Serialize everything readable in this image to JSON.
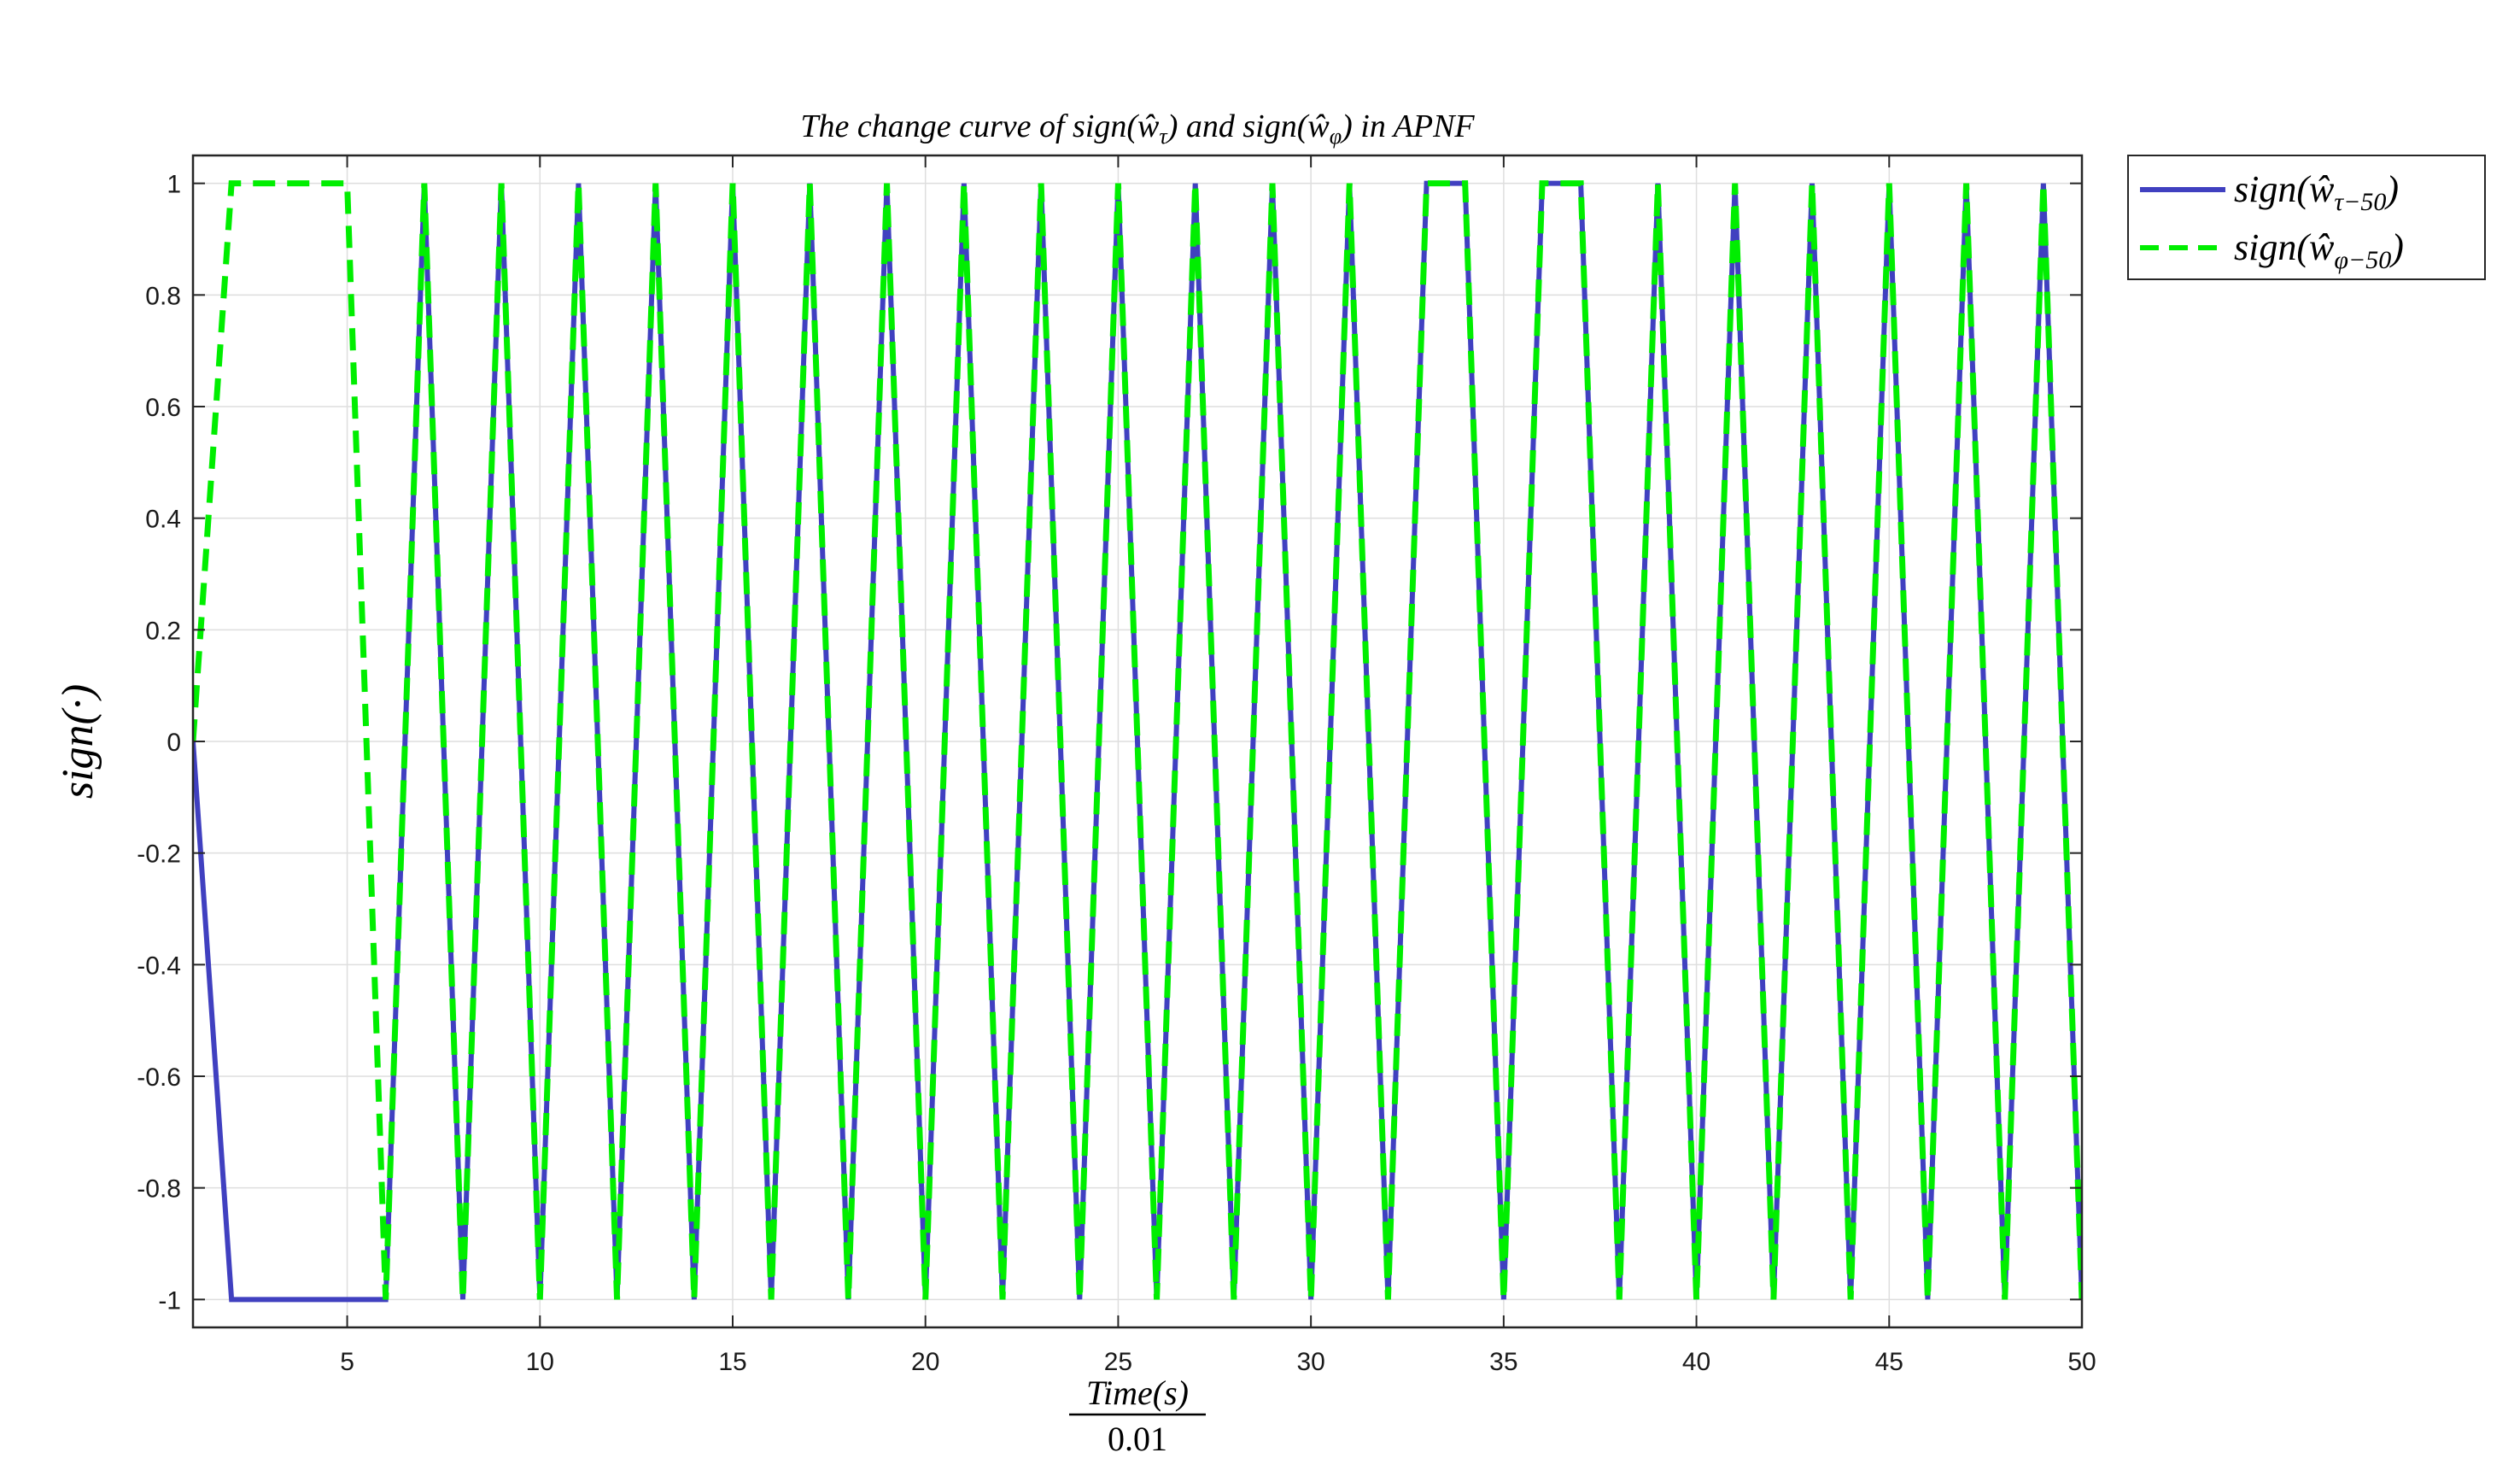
{
  "chart_data": {
    "type": "line",
    "title": "The change curve of sign(ŵ_τ) and sign(ŵ_φ) in APNF",
    "xlabel_numerator": "Time(s)",
    "xlabel_denominator": "0.01",
    "ylabel": "sign(·)",
    "xlim": [
      1,
      50
    ],
    "ylim": [
      -1.05,
      1.05
    ],
    "xticks": [
      5,
      10,
      15,
      20,
      25,
      30,
      35,
      40,
      45,
      50
    ],
    "yticks": [
      -1,
      -0.8,
      -0.6,
      -0.4,
      -0.2,
      0,
      0.2,
      0.4,
      0.6,
      0.8,
      1
    ],
    "grid": true,
    "legend_position": "outside-top-right",
    "series": [
      {
        "name": "sign(ŵ_τ-50)",
        "color": "#4040c0",
        "style": "solid",
        "x": [
          1,
          2,
          3,
          4,
          5,
          6,
          7,
          8,
          9,
          10,
          11,
          12,
          13,
          14,
          15,
          16,
          17,
          18,
          19,
          20,
          21,
          22,
          23,
          24,
          25,
          26,
          27,
          28,
          29,
          30,
          31,
          32,
          33,
          34,
          35,
          36,
          37,
          38,
          39,
          40,
          41,
          42,
          43,
          44,
          45,
          46,
          47,
          48,
          49,
          50
        ],
        "y": [
          0,
          -1,
          -1,
          -1,
          -1,
          -1,
          1,
          -1,
          1,
          -1,
          1,
          -1,
          1,
          -1,
          1,
          -1,
          1,
          -1,
          1,
          -1,
          1,
          -1,
          1,
          -1,
          1,
          -1,
          1,
          -1,
          1,
          -1,
          1,
          -1,
          1,
          1,
          -1,
          1,
          1,
          -1,
          1,
          -1,
          1,
          -1,
          1,
          -1,
          1,
          -1,
          1,
          -1,
          1,
          -1
        ]
      },
      {
        "name": "sign(ŵ_φ-50)",
        "color": "#00ee00",
        "style": "dashed",
        "x": [
          1,
          2,
          3,
          4,
          5,
          6,
          7,
          8,
          9,
          10,
          11,
          12,
          13,
          14,
          15,
          16,
          17,
          18,
          19,
          20,
          21,
          22,
          23,
          24,
          25,
          26,
          27,
          28,
          29,
          30,
          31,
          32,
          33,
          34,
          35,
          36,
          37,
          38,
          39,
          40,
          41,
          42,
          43,
          44,
          45,
          46,
          47,
          48,
          49,
          50
        ],
        "y": [
          0,
          1,
          1,
          1,
          1,
          -1,
          1,
          -1,
          1,
          -1,
          1,
          -1,
          1,
          -1,
          1,
          -1,
          1,
          -1,
          1,
          -1,
          1,
          -1,
          1,
          -1,
          1,
          -1,
          1,
          -1,
          1,
          -1,
          1,
          -1,
          1,
          1,
          -1,
          1,
          1,
          -1,
          1,
          -1,
          1,
          -1,
          1,
          -1,
          1,
          -1,
          1,
          -1,
          1,
          -1
        ]
      }
    ]
  }
}
